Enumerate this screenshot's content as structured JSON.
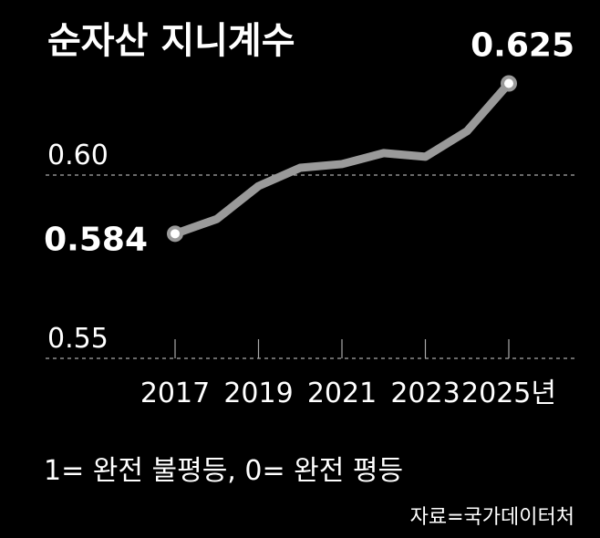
{
  "chart_data": {
    "type": "line",
    "title": "순자산 지니계수",
    "categories": [
      "2017",
      null,
      "2019",
      null,
      "2021",
      null,
      "2023",
      null,
      "2025년"
    ],
    "series": [
      {
        "name": "순자산 지니계수",
        "color": "#9a9a9a",
        "values": [
          0.584,
          0.588,
          0.597,
          0.602,
          0.603,
          0.606,
          0.605,
          0.612,
          0.625
        ],
        "value_labels": [
          "0.584",
          null,
          null,
          null,
          null,
          null,
          null,
          null,
          "0.625"
        ]
      }
    ],
    "ylim": [
      0.55,
      0.63
    ],
    "yticks": [
      0.55,
      {
        "value": 0.6,
        "label": "0.60"
      }
    ],
    "grid": true,
    "note": "1= 완전 불평등, 0= 완전 평등",
    "source": "자료=국가데이터처"
  }
}
